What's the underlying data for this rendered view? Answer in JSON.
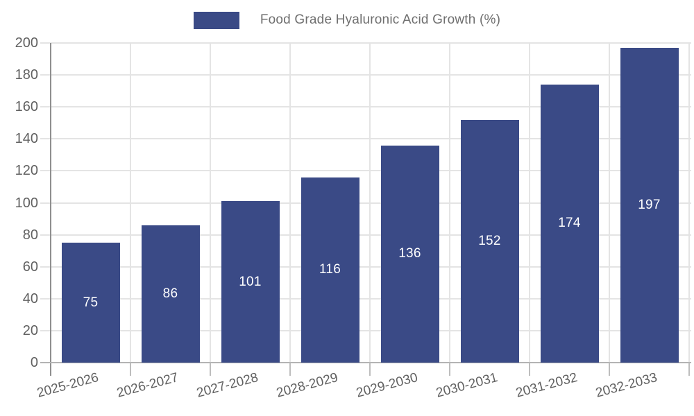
{
  "chart_data": {
    "type": "bar",
    "title": "Food Grade Hyaluronic Acid Growth (%)",
    "categories": [
      "2025-2026",
      "2026-2027",
      "2027-2028",
      "2028-2029",
      "2029-2030",
      "2030-2031",
      "2031-2032",
      "2032-2033"
    ],
    "values": [
      75,
      86,
      101,
      116,
      136,
      152,
      174,
      197
    ],
    "xlabel": "",
    "ylabel": "",
    "ylim": [
      0,
      200
    ],
    "ytick_step": 20,
    "ytick_labels": [
      "0",
      "20",
      "40",
      "60",
      "80",
      "100",
      "120",
      "140",
      "160",
      "180",
      "200"
    ],
    "grid": true,
    "legend_position": "top-center",
    "legend_label": "Food Grade Hyaluronic Acid Growth (%)",
    "bar_color": "#3A4A86",
    "value_label_color": "#FFFFFF",
    "x_tick_rotation_deg": -15
  },
  "colors": {
    "background": "#FFFFFF",
    "grid": "#E4E4E4",
    "axis_line_left": "#8F8F8F",
    "axis_line_bottom": "#B3B3B3",
    "tick_mark": "#BDBDBD",
    "tick_label_text": "#616161",
    "legend_text": "#6F6F6F"
  }
}
